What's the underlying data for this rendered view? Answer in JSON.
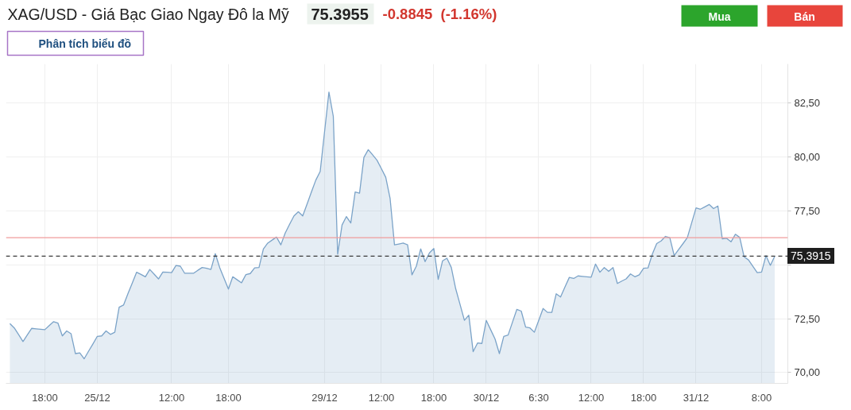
{
  "chart_data": {
    "type": "area",
    "title": "XAG/USD - Giá Bạc Giao Ngay Đô la Mỹ",
    "annotations": [
      "75.3955",
      "-0.8845",
      "(-1.16%)",
      "Phân tích biểu đồ",
      "Mua",
      "Bán"
    ],
    "categories": [
      null,
      null,
      null,
      null,
      null,
      null,
      null,
      null,
      "18:00",
      null,
      null,
      null,
      null,
      null,
      null,
      null,
      null,
      null,
      null,
      null,
      "25/12",
      null,
      null,
      null,
      null,
      null,
      null,
      null,
      null,
      null,
      null,
      null,
      null,
      null,
      null,
      null,
      null,
      "12:00",
      null,
      null,
      null,
      null,
      null,
      null,
      null,
      null,
      null,
      null,
      null,
      null,
      "18:00",
      null,
      null,
      null,
      null,
      null,
      null,
      null,
      null,
      null,
      null,
      null,
      null,
      null,
      null,
      null,
      null,
      null,
      null,
      null,
      null,
      null,
      "29/12",
      null,
      null,
      null,
      null,
      null,
      null,
      null,
      null,
      null,
      null,
      null,
      null,
      "12:00",
      null,
      null,
      null,
      null,
      null,
      null,
      null,
      null,
      null,
      null,
      null,
      "18:00",
      null,
      null,
      null,
      null,
      null,
      null,
      null,
      null,
      null,
      null,
      null,
      "30/12",
      null,
      null,
      null,
      null,
      null,
      null,
      null,
      null,
      null,
      null,
      null,
      "6:30",
      null,
      null,
      null,
      null,
      null,
      null,
      null,
      null,
      null,
      null,
      null,
      "12:00",
      null,
      null,
      null,
      null,
      null,
      null,
      null,
      null,
      null,
      null,
      null,
      "18:00",
      null,
      null,
      null,
      null,
      null,
      null,
      null,
      null,
      null,
      null,
      null,
      "31/12",
      null,
      null,
      null,
      null,
      null,
      null,
      null,
      null,
      null,
      null,
      null,
      null,
      null,
      null,
      "8:00",
      null,
      null,
      null
    ],
    "values": [
      72.27,
      72.07,
      71.76,
      71.44,
      71.75,
      72.05,
      72.03,
      72.01,
      71.99,
      72.18,
      72.36,
      72.29,
      71.7,
      71.93,
      71.8,
      70.88,
      70.91,
      70.64,
      70.99,
      71.33,
      71.68,
      71.7,
      71.93,
      71.77,
      71.87,
      73.03,
      73.13,
      73.65,
      74.15,
      74.65,
      74.55,
      74.44,
      74.78,
      74.56,
      74.34,
      74.66,
      74.65,
      74.63,
      74.96,
      74.93,
      74.6,
      74.6,
      74.6,
      74.74,
      74.87,
      74.83,
      74.78,
      75.51,
      74.87,
      74.37,
      73.87,
      74.44,
      74.3,
      74.16,
      74.54,
      74.59,
      74.85,
      74.87,
      75.73,
      76.0,
      76.14,
      76.28,
      75.92,
      76.47,
      76.87,
      77.26,
      77.45,
      77.26,
      77.81,
      78.37,
      78.92,
      79.32,
      81.16,
      83.0,
      81.87,
      75.49,
      76.84,
      77.23,
      76.93,
      78.37,
      78.31,
      79.97,
      80.33,
      80.09,
      79.84,
      79.45,
      79.05,
      78.06,
      75.92,
      75.96,
      76.0,
      75.92,
      74.53,
      74.93,
      75.73,
      75.14,
      75.55,
      75.75,
      74.32,
      75.18,
      75.3,
      74.87,
      73.89,
      73.16,
      72.42,
      72.66,
      70.97,
      71.37,
      71.35,
      72.42,
      71.99,
      71.56,
      70.88,
      71.68,
      71.74,
      72.34,
      72.93,
      72.85,
      72.11,
      72.07,
      71.87,
      72.42,
      72.97,
      72.79,
      72.79,
      73.65,
      73.5,
      73.96,
      74.41,
      74.36,
      74.48,
      74.46,
      74.44,
      74.42,
      75.03,
      74.65,
      74.87,
      74.69,
      74.87,
      74.13,
      74.24,
      74.34,
      74.57,
      74.44,
      74.53,
      74.83,
      74.85,
      75.49,
      75.98,
      76.1,
      76.31,
      76.25,
      75.42,
      75.7,
      75.97,
      76.25,
      76.94,
      77.63,
      77.57,
      77.68,
      77.79,
      77.6,
      77.72,
      76.2,
      76.22,
      76.06,
      76.41,
      76.26,
      75.36,
      75.22,
      74.93,
      74.63,
      74.66,
      75.42,
      74.97,
      75.39
    ],
    "color": "#7ba3c8",
    "ylim": [
      69.5,
      84.3
    ],
    "yticks": [
      {
        "value": 70,
        "label": "70,00"
      },
      {
        "value": 72.5,
        "label": "72,50"
      },
      {
        "value": 75,
        "label": null
      },
      {
        "value": 77.5,
        "label": "77,50"
      },
      {
        "value": 80,
        "label": "80,00"
      },
      {
        "value": 82.5,
        "label": "82,50"
      }
    ],
    "ref_lines": [
      {
        "axis": "y",
        "value": 76.25,
        "color": "#f09c9c"
      },
      {
        "axis": "y",
        "value": 75.3915,
        "label": "75,3915",
        "color": "#3a3a3a",
        "line_style": "dashed"
      }
    ],
    "grid": true
  }
}
